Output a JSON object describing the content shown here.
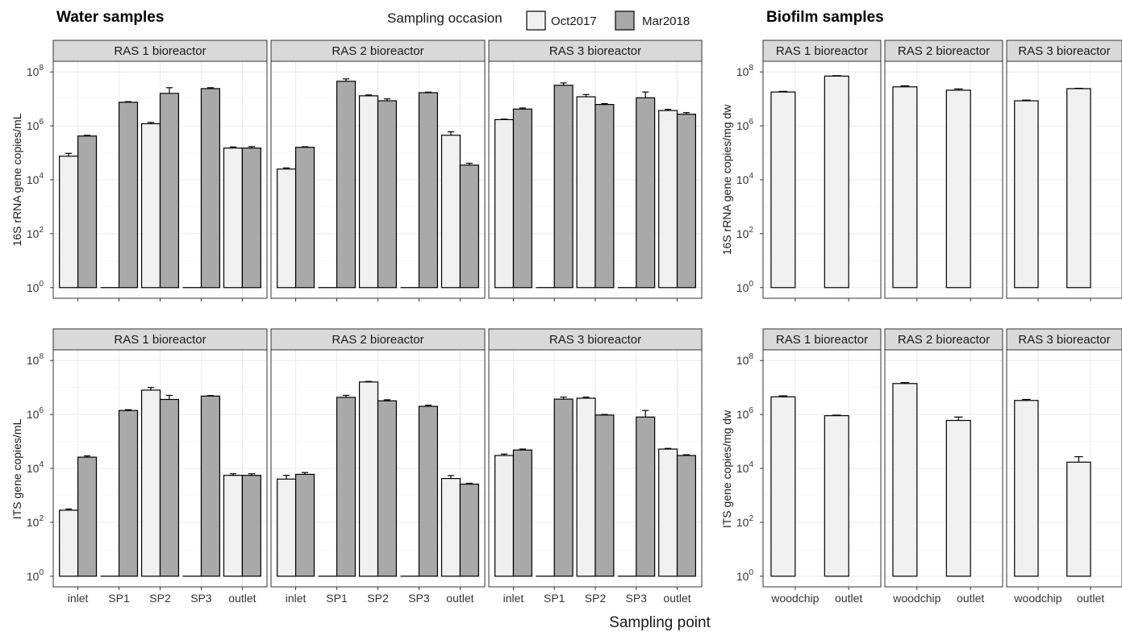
{
  "titles": {
    "water": "Water samples",
    "biofilm": "Biofilm samples"
  },
  "legend": {
    "title": "Sampling occasion",
    "items": [
      {
        "label": "Oct2017",
        "color": "#f0f0f0"
      },
      {
        "label": "Mar2018",
        "color": "#a9a9a9"
      }
    ]
  },
  "x_axis_title": "Sampling point",
  "y_axis_titles": {
    "water_16s": "16S rRNA gene copies/mL",
    "water_its": "ITS gene copies/mL",
    "biofilm_16s": "16S rRNA gene copies/mg dw",
    "biofilm_its": "ITS gene copies/mg dw"
  },
  "y_tick_labels": {
    "base": "10",
    "exponents": [
      "0",
      "2",
      "4",
      "6",
      "8"
    ]
  },
  "chart_data": [
    {
      "type": "bar",
      "title": "Water samples",
      "ylabel": "16S rRNA gene copies/mL",
      "xlabel": "Sampling point",
      "yscale": "log10",
      "ylim": [
        1,
        100000000
      ],
      "categories": [
        "inlet",
        "SP1",
        "SP2",
        "SP3",
        "outlet"
      ],
      "facets": [
        {
          "strip": "RAS 1 bioreactor",
          "series": [
            {
              "name": "Oct2017",
              "values": [
                75000,
                null,
                1200000,
                null,
                150000
              ],
              "err": [
                20000,
                null,
                150000,
                null,
                15000
              ]
            },
            {
              "name": "Mar2018",
              "values": [
                420000,
                7500000,
                16000000,
                24000000,
                150000
              ],
              "err": [
                25000,
                400000,
                10000000,
                2000000,
                20000
              ]
            }
          ]
        },
        {
          "strip": "RAS 2 bioreactor",
          "series": [
            {
              "name": "Oct2017",
              "values": [
                25000,
                null,
                13000000,
                null,
                450000
              ],
              "err": [
                2500,
                null,
                1000000,
                null,
                150000
              ]
            },
            {
              "name": "Mar2018",
              "values": [
                160000,
                45000000,
                8500000,
                17000000,
                35000
              ],
              "err": [
                8000,
                10000000,
                1500000,
                800000,
                6000
              ]
            }
          ]
        },
        {
          "strip": "RAS 3 bioreactor",
          "series": [
            {
              "name": "Oct2017",
              "values": [
                1700000,
                null,
                12000000,
                null,
                3700000
              ],
              "err": [
                80000,
                null,
                2500000,
                null,
                400000
              ]
            },
            {
              "name": "Mar2018",
              "values": [
                4200000,
                32000000,
                6200000,
                11000000,
                2700000
              ],
              "err": [
                400000,
                7000000,
                500000,
                7000000,
                400000
              ]
            }
          ]
        }
      ]
    },
    {
      "type": "bar",
      "title": "Water samples",
      "ylabel": "ITS gene copies/mL",
      "xlabel": "Sampling point",
      "yscale": "log10",
      "ylim": [
        1,
        100000000
      ],
      "categories": [
        "inlet",
        "SP1",
        "SP2",
        "SP3",
        "outlet"
      ],
      "facets": [
        {
          "strip": "RAS 1 bioreactor",
          "series": [
            {
              "name": "Oct2017",
              "values": [
                280,
                null,
                8000000,
                null,
                5500
              ],
              "err": [
                30,
                null,
                2000000,
                null,
                800
              ]
            },
            {
              "name": "Mar2018",
              "values": [
                26000,
                1400000,
                3600000,
                4800000,
                5500
              ],
              "err": [
                3000,
                100000,
                1500000,
                200000,
                800
              ]
            }
          ]
        },
        {
          "strip": "RAS 2 bioreactor",
          "series": [
            {
              "name": "Oct2017",
              "values": [
                4000,
                null,
                16000000,
                null,
                4200
              ],
              "err": [
                1500,
                null,
                800000,
                null,
                1200
              ]
            },
            {
              "name": "Mar2018",
              "values": [
                6000,
                4300000,
                3200000,
                2000000,
                2600
              ],
              "err": [
                1000,
                800000,
                300000,
                200000,
                200
              ]
            }
          ]
        },
        {
          "strip": "RAS 3 bioreactor",
          "series": [
            {
              "name": "Oct2017",
              "values": [
                30000,
                null,
                4000000,
                null,
                52000
              ],
              "err": [
                4000,
                null,
                400000,
                null,
                3000
              ]
            },
            {
              "name": "Mar2018",
              "values": [
                48000,
                3700000,
                950000,
                800000,
                30000
              ],
              "err": [
                4000,
                700000,
                50000,
                600000,
                2000
              ]
            }
          ]
        }
      ]
    },
    {
      "type": "bar",
      "title": "Biofilm samples",
      "ylabel": "16S rRNA gene copies/mg dw",
      "xlabel": "Sampling point",
      "yscale": "log10",
      "ylim": [
        1,
        100000000
      ],
      "categories": [
        "woodchip",
        "outlet"
      ],
      "facets": [
        {
          "strip": "RAS 1 bioreactor",
          "series": [
            {
              "name": "Oct2017",
              "values": [
                18000000,
                70000000
              ],
              "err": [
                1000000,
                2500000
              ]
            }
          ]
        },
        {
          "strip": "RAS 2 bioreactor",
          "series": [
            {
              "name": "Oct2017",
              "values": [
                28000000,
                21000000
              ],
              "err": [
                2500000,
                2500000
              ]
            }
          ]
        },
        {
          "strip": "RAS 3 bioreactor",
          "series": [
            {
              "name": "Oct2017",
              "values": [
                8500000,
                24000000
              ],
              "err": [
                500000,
                700000
              ]
            }
          ]
        }
      ]
    },
    {
      "type": "bar",
      "title": "Biofilm samples",
      "ylabel": "ITS gene copies/mg dw",
      "xlabel": "Sampling point",
      "yscale": "log10",
      "ylim": [
        1,
        100000000
      ],
      "categories": [
        "woodchip",
        "outlet"
      ],
      "facets": [
        {
          "strip": "RAS 1 bioreactor",
          "series": [
            {
              "name": "Oct2017",
              "values": [
                4500000,
                900000
              ],
              "err": [
                400000,
                40000
              ]
            }
          ]
        },
        {
          "strip": "RAS 2 bioreactor",
          "series": [
            {
              "name": "Oct2017",
              "values": [
                14000000,
                600000
              ],
              "err": [
                1200000,
                200000
              ]
            }
          ]
        },
        {
          "strip": "RAS 3 bioreactor",
          "series": [
            {
              "name": "Oct2017",
              "values": [
                3300000,
                17000
              ],
              "err": [
                300000,
                10000
              ]
            }
          ]
        }
      ]
    }
  ]
}
